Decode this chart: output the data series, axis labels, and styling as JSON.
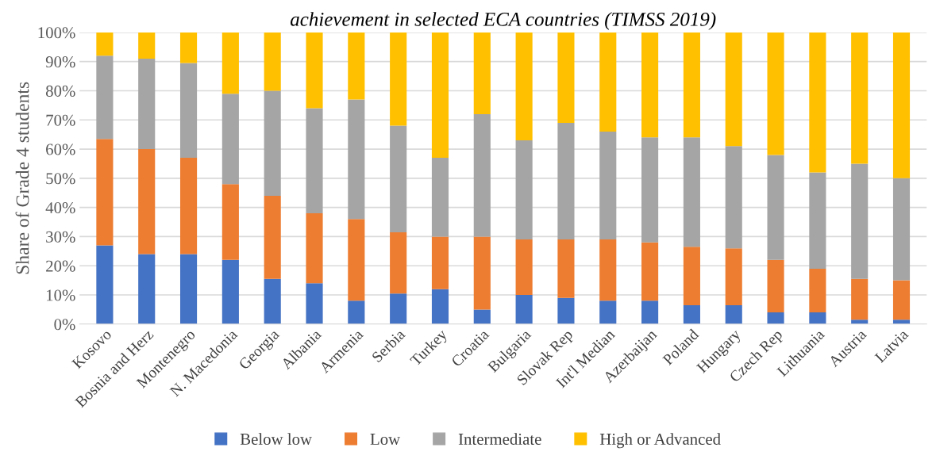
{
  "chart_data": {
    "type": "bar",
    "stacked": true,
    "title": "achievement in selected ECA countries (TIMSS 2019)",
    "ylabel": "Share of Grade 4 students",
    "categories": [
      "Kosovo",
      "Bosnia and Herz",
      "Montenegro",
      "N. Macedonia",
      "Georgia",
      "Albania",
      "Armenia",
      "Serbia",
      "Turkey",
      "Croatia",
      "Bulgaria",
      "Slovak Rep",
      "Int'l Median",
      "Azerbaijan",
      "Poland",
      "Hungary",
      "Czech Rep",
      "Lithuania",
      "Austria",
      "Latvia"
    ],
    "series": [
      {
        "name": "Below low",
        "color": "#4472c4",
        "values": [
          27,
          24,
          24,
          22,
          15.5,
          14,
          8,
          10.5,
          12,
          5,
          10,
          9,
          8,
          8,
          6.5,
          6.5,
          4,
          4,
          1.5,
          1.5
        ]
      },
      {
        "name": "Low",
        "color": "#ed7d31",
        "values": [
          36.5,
          36,
          33,
          26,
          28.5,
          24,
          28,
          21,
          18,
          25,
          19,
          20,
          21,
          20,
          20,
          19.5,
          18,
          15,
          14,
          13.5
        ]
      },
      {
        "name": "Intermediate",
        "color": "#a5a5a5",
        "values": [
          28.5,
          31,
          32.5,
          31,
          36,
          36,
          41,
          36.5,
          27,
          42,
          34,
          40,
          37,
          36,
          37.5,
          35,
          36,
          33,
          39.5,
          35
        ]
      },
      {
        "name": "High or Advanced",
        "color": "#ffc000",
        "values": [
          8,
          9,
          10.5,
          21,
          20,
          26,
          23,
          32,
          43,
          28,
          37,
          31,
          34,
          36,
          36,
          39,
          42,
          48,
          45,
          50
        ]
      }
    ],
    "ylim": [
      0,
      100
    ],
    "yticks": [
      {
        "value": 0,
        "label": "0%"
      },
      {
        "value": 10,
        "label": "10%"
      },
      {
        "value": 20,
        "label": "20%"
      },
      {
        "value": 30,
        "label": "30%"
      },
      {
        "value": 40,
        "label": "40%"
      },
      {
        "value": 50,
        "label": "50%"
      },
      {
        "value": 60,
        "label": "60%"
      },
      {
        "value": 70,
        "label": "70%"
      },
      {
        "value": 80,
        "label": "80%"
      },
      {
        "value": 90,
        "label": "90%"
      },
      {
        "value": 100,
        "label": "100%"
      }
    ],
    "grid": "y",
    "legend": "bottom"
  }
}
